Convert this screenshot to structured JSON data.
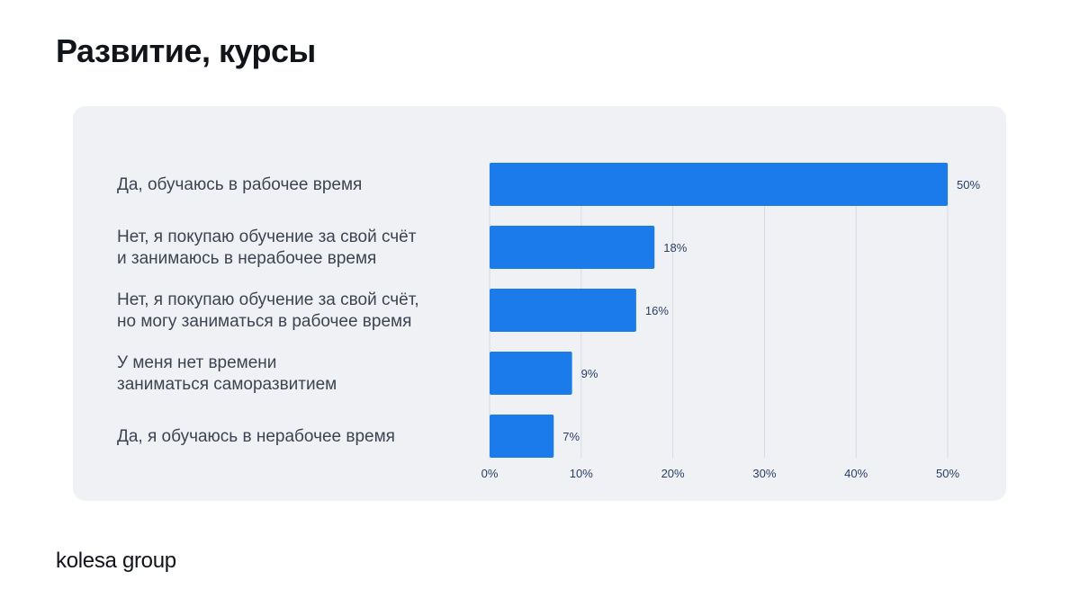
{
  "title": "Развитие, курсы",
  "brand": {
    "logo_text": "kolesa group"
  },
  "colors": {
    "bar": "#1c7bea",
    "grid": "#d6dae2"
  },
  "chart_data": {
    "type": "bar",
    "orientation": "horizontal",
    "categories": [
      [
        "Да, обучаюсь в рабочее время"
      ],
      [
        "Нет, я покупаю обучение за свой счёт",
        "и занимаюсь в нерабочее время"
      ],
      [
        "Нет, я покупаю обучение за свой счёт,",
        "но могу заниматься в рабочее время"
      ],
      [
        "У меня нет времени",
        "заниматься саморазвитием"
      ],
      [
        "Да, я обучаюсь в нерабочее время"
      ]
    ],
    "values": [
      50,
      18,
      16,
      9,
      7
    ],
    "value_labels": [
      "50%",
      "18%",
      "16%",
      "9%",
      "7%"
    ],
    "xlim": [
      0,
      50
    ],
    "x_ticks": [
      0,
      10,
      20,
      30,
      40,
      50
    ],
    "x_tick_labels": [
      "0%",
      "10%",
      "20%",
      "30%",
      "40%",
      "50%"
    ],
    "grid": "vertical",
    "legend": "none"
  }
}
